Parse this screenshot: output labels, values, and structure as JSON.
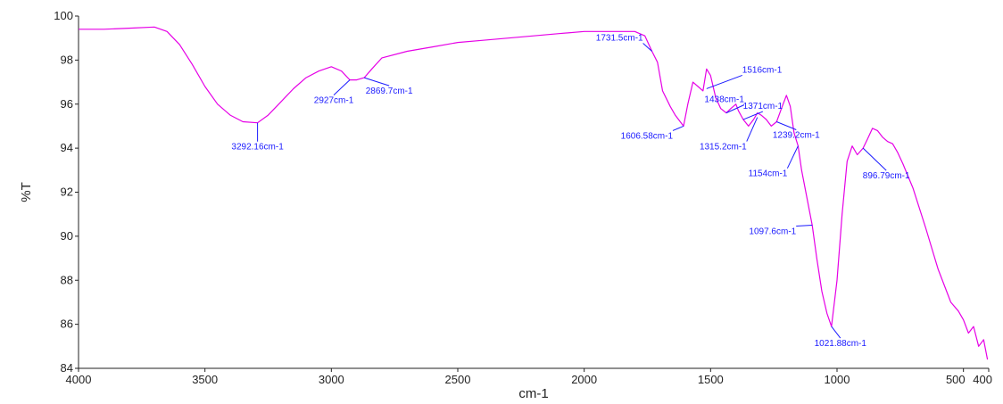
{
  "chart_data": {
    "type": "line",
    "title": "",
    "xlabel": "cm-1",
    "ylabel": "%T",
    "xlim": [
      4000,
      400
    ],
    "ylim": [
      84,
      100
    ],
    "x_reversed": true,
    "grid": false,
    "colors": {
      "line": "#e600e6",
      "annotation": "#1a1aff",
      "axis": "#222222"
    },
    "x_ticks": [
      {
        "value": 4000,
        "label": "4000"
      },
      {
        "value": 3500,
        "label": "3500"
      },
      {
        "value": 3000,
        "label": "3000"
      },
      {
        "value": 2500,
        "label": "2500"
      },
      {
        "value": 2000,
        "label": "2000"
      },
      {
        "value": 1500,
        "label": "1500"
      },
      {
        "value": 1000,
        "label": "1000"
      },
      {
        "value": 500,
        "label": "500"
      },
      {
        "value": 400,
        "label": "400"
      }
    ],
    "y_ticks": [
      {
        "value": 84,
        "label": "84"
      },
      {
        "value": 86,
        "label": "86"
      },
      {
        "value": 88,
        "label": "88"
      },
      {
        "value": 90,
        "label": "90"
      },
      {
        "value": 92,
        "label": "92"
      },
      {
        "value": 94,
        "label": "94"
      },
      {
        "value": 96,
        "label": "96"
      },
      {
        "value": 98,
        "label": "98"
      },
      {
        "value": 100,
        "label": "100"
      }
    ],
    "series": [
      {
        "x": [
          4000,
          3900,
          3800,
          3700,
          3650,
          3600,
          3550,
          3500,
          3450,
          3400,
          3350,
          3292,
          3250,
          3200,
          3150,
          3100,
          3050,
          3000,
          2960,
          2927,
          2900,
          2870,
          2840,
          2800,
          2700,
          2600,
          2500,
          2400,
          2300,
          2200,
          2100,
          2000,
          1900,
          1800,
          1760,
          1732,
          1710,
          1690,
          1660,
          1640,
          1620,
          1607,
          1590,
          1570,
          1550,
          1530,
          1516,
          1500,
          1480,
          1460,
          1438,
          1420,
          1400,
          1390,
          1371,
          1350,
          1330,
          1315,
          1300,
          1280,
          1260,
          1239,
          1220,
          1200,
          1185,
          1170,
          1154,
          1140,
          1120,
          1098,
          1080,
          1060,
          1040,
          1022,
          1000,
          980,
          960,
          940,
          920,
          897,
          880,
          860,
          840,
          820,
          800,
          780,
          760,
          740,
          700,
          650,
          600,
          550,
          520,
          500,
          480,
          460,
          440,
          420,
          405
        ],
        "y": [
          99.4,
          99.4,
          99.45,
          99.5,
          99.3,
          98.7,
          97.8,
          96.8,
          96.0,
          95.5,
          95.2,
          95.15,
          95.5,
          96.1,
          96.7,
          97.2,
          97.5,
          97.7,
          97.5,
          97.1,
          97.1,
          97.2,
          97.6,
          98.1,
          98.4,
          98.6,
          98.8,
          98.9,
          99.0,
          99.1,
          99.2,
          99.3,
          99.3,
          99.3,
          99.1,
          98.4,
          97.9,
          96.6,
          95.9,
          95.5,
          95.2,
          95.0,
          96.0,
          97.0,
          96.8,
          96.6,
          97.6,
          97.3,
          96.3,
          95.8,
          95.6,
          95.8,
          96.0,
          95.7,
          95.3,
          95.0,
          95.3,
          95.6,
          95.5,
          95.3,
          95.0,
          95.2,
          95.8,
          96.4,
          95.9,
          94.7,
          94.1,
          93.0,
          91.8,
          90.5,
          89.0,
          87.5,
          86.5,
          85.9,
          88.0,
          91.0,
          93.4,
          94.1,
          93.7,
          94.0,
          94.4,
          94.9,
          94.8,
          94.5,
          94.3,
          94.2,
          93.8,
          93.3,
          92.2,
          90.4,
          88.5,
          87.0,
          86.6,
          86.2,
          85.6,
          85.9,
          85.0,
          85.3,
          84.4
        ]
      }
    ],
    "annotations": [
      {
        "label": "3292.16cm-1",
        "x": 3292,
        "y": 95.15
      },
      {
        "label": "2927cm-1",
        "x": 2927,
        "y": 97.1
      },
      {
        "label": "2869.7cm-1",
        "x": 2870,
        "y": 97.2
      },
      {
        "label": "1731.5cm-1",
        "x": 1732,
        "y": 98.4
      },
      {
        "label": "1606.58cm-1",
        "x": 1607,
        "y": 95.0
      },
      {
        "label": "1516cm-1",
        "x": 1516,
        "y": 96.7
      },
      {
        "label": "1438cm-1",
        "x": 1438,
        "y": 95.6
      },
      {
        "label": "1371cm-1",
        "x": 1371,
        "y": 95.3
      },
      {
        "label": "1315.2cm-1",
        "x": 1315,
        "y": 95.4
      },
      {
        "label": "1239.2cm-1",
        "x": 1239,
        "y": 95.2
      },
      {
        "label": "1154cm-1",
        "x": 1154,
        "y": 94.1
      },
      {
        "label": "1097.6cm-1",
        "x": 1098,
        "y": 90.5
      },
      {
        "label": "1021.88cm-1",
        "x": 1022,
        "y": 85.9
      },
      {
        "label": "896.79cm-1",
        "x": 897,
        "y": 94.0
      }
    ]
  }
}
